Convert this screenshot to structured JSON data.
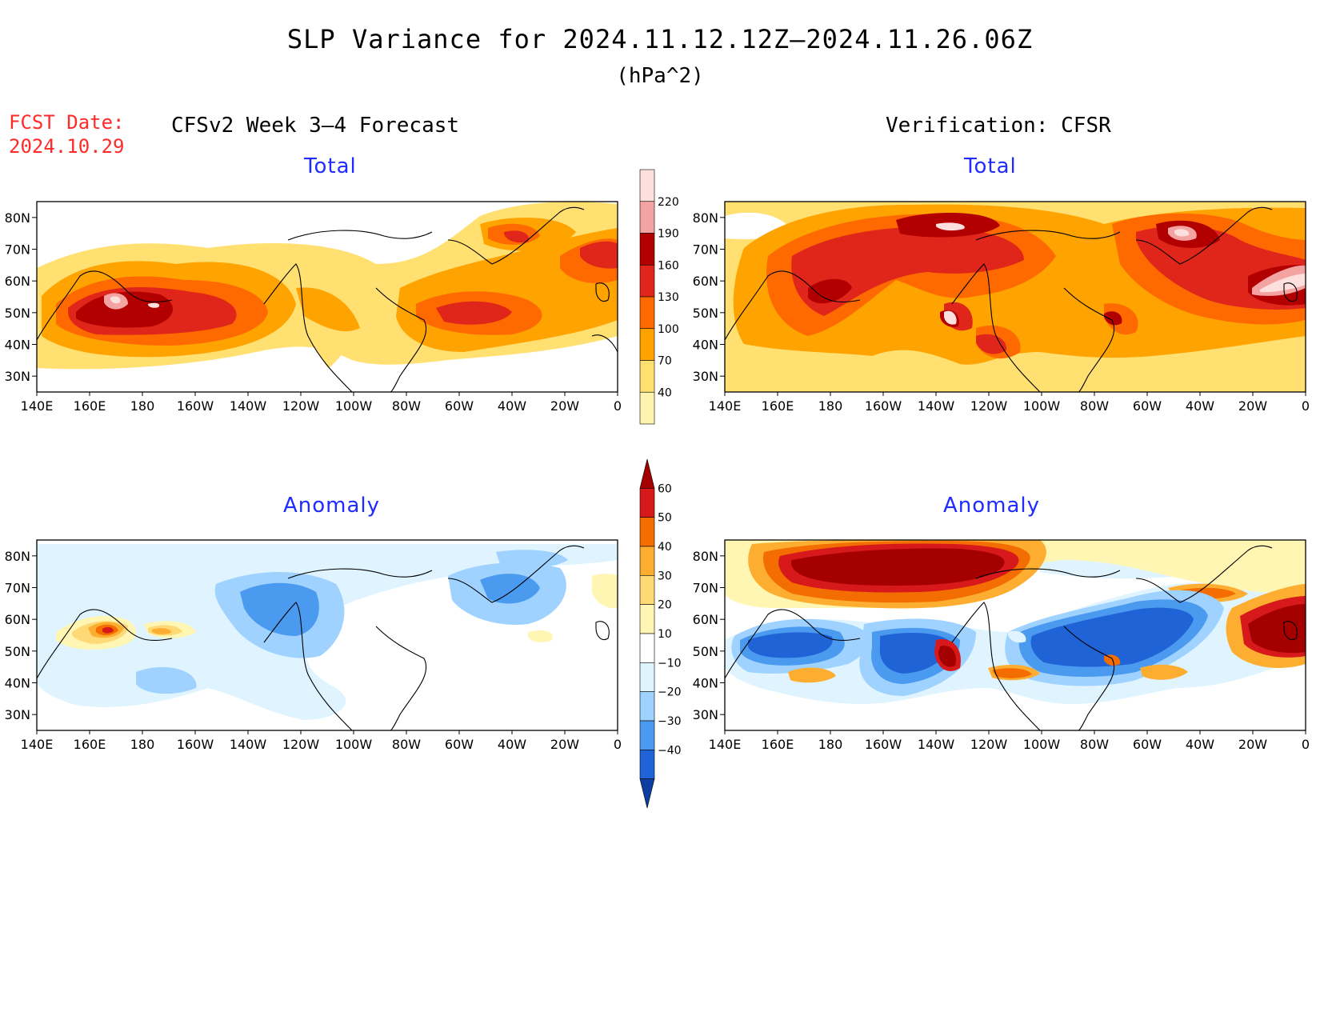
{
  "title": "SLP Variance for 2024.11.12.12Z—2024.11.26.06Z",
  "units": "(hPa^2)",
  "forecast_date_label": "FCST Date:",
  "forecast_date": "2024.10.29",
  "columns": {
    "left": "CFSv2 Week 3—4 Forecast",
    "right": "Verification: CFSR"
  },
  "rows": {
    "top": "Total",
    "bottom": "Anomaly"
  },
  "axes": {
    "lat_labels": [
      "80N",
      "70N",
      "60N",
      "50N",
      "40N",
      "30N"
    ],
    "lon_labels": [
      "140E",
      "160E",
      "180",
      "160W",
      "140W",
      "120W",
      "100W",
      "80W",
      "60W",
      "40W",
      "20W",
      "0"
    ]
  },
  "colorbar_total": {
    "levels": [
      "220",
      "190",
      "160",
      "130",
      "100",
      "70",
      "40"
    ],
    "colors": [
      "#fde0dd",
      "#f4a3a3",
      "#b20000",
      "#e0261b",
      "#ff6a00",
      "#ffa300",
      "#ffe070",
      "#fff3b0"
    ]
  },
  "colorbar_anomaly": {
    "levels": [
      "60",
      "50",
      "40",
      "30",
      "20",
      "10",
      "−10",
      "−20",
      "−30",
      "−40"
    ],
    "colors": [
      "#a50000",
      "#d7191c",
      "#f46d00",
      "#fdae30",
      "#fed976",
      "#fff6b3",
      "#ffffff",
      "#dff4ff",
      "#9fd2ff",
      "#4a9af0",
      "#1f63d6",
      "#0d3fa0"
    ]
  },
  "palette": {
    "title_blue": "#1f2bff",
    "fcst_red": "#ff2a2a"
  }
}
